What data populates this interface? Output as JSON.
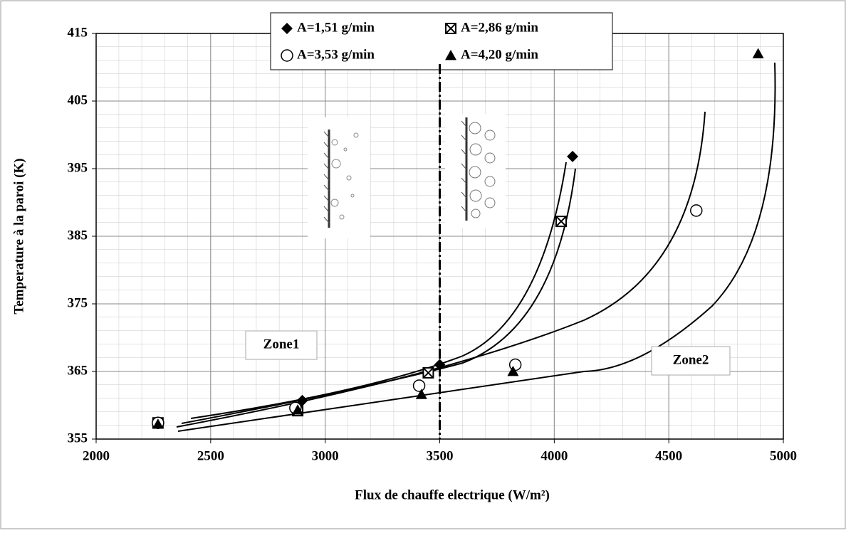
{
  "chart_data": {
    "type": "scatter",
    "x_label": "Flux de chauffe electrique (W/m²)",
    "y_label": "Temperature à la paroi (K)",
    "xlim": [
      2000,
      5000
    ],
    "xticks": [
      2000,
      2500,
      3000,
      3500,
      4000,
      4500,
      5000
    ],
    "ylim": [
      355,
      415
    ],
    "yticks": [
      355,
      365,
      375,
      385,
      395,
      405,
      415
    ],
    "grid": true,
    "zone_boundary": 3500,
    "annotations": [
      "Zone1",
      "Zone2"
    ],
    "series": [
      {
        "name": "A=1,51 g/min",
        "marker": "diamond",
        "color": "#000000",
        "x": [
          2270,
          2900,
          3500,
          4080
        ],
        "values": [
          357.5,
          360.7,
          366,
          396.8
        ]
      },
      {
        "name": "A=2,86 g/min",
        "marker": "boxcross",
        "color": "#000000",
        "x": [
          2270,
          2880,
          3450,
          4030
        ],
        "values": [
          357.4,
          359.2,
          364.8,
          387.2
        ]
      },
      {
        "name": "A=3,53 g/min",
        "marker": "circle",
        "color": "#000000",
        "x": [
          2270,
          2870,
          3410,
          3830,
          4620
        ],
        "values": [
          357.4,
          359.6,
          362.9,
          366,
          388.8
        ]
      },
      {
        "name": "A=4,20 g/min",
        "marker": "triangle",
        "color": "#000000",
        "x": [
          2270,
          2880,
          3420,
          3820,
          4890
        ],
        "values": [
          357.2,
          359.3,
          361.6,
          365,
          412
        ]
      }
    ]
  }
}
